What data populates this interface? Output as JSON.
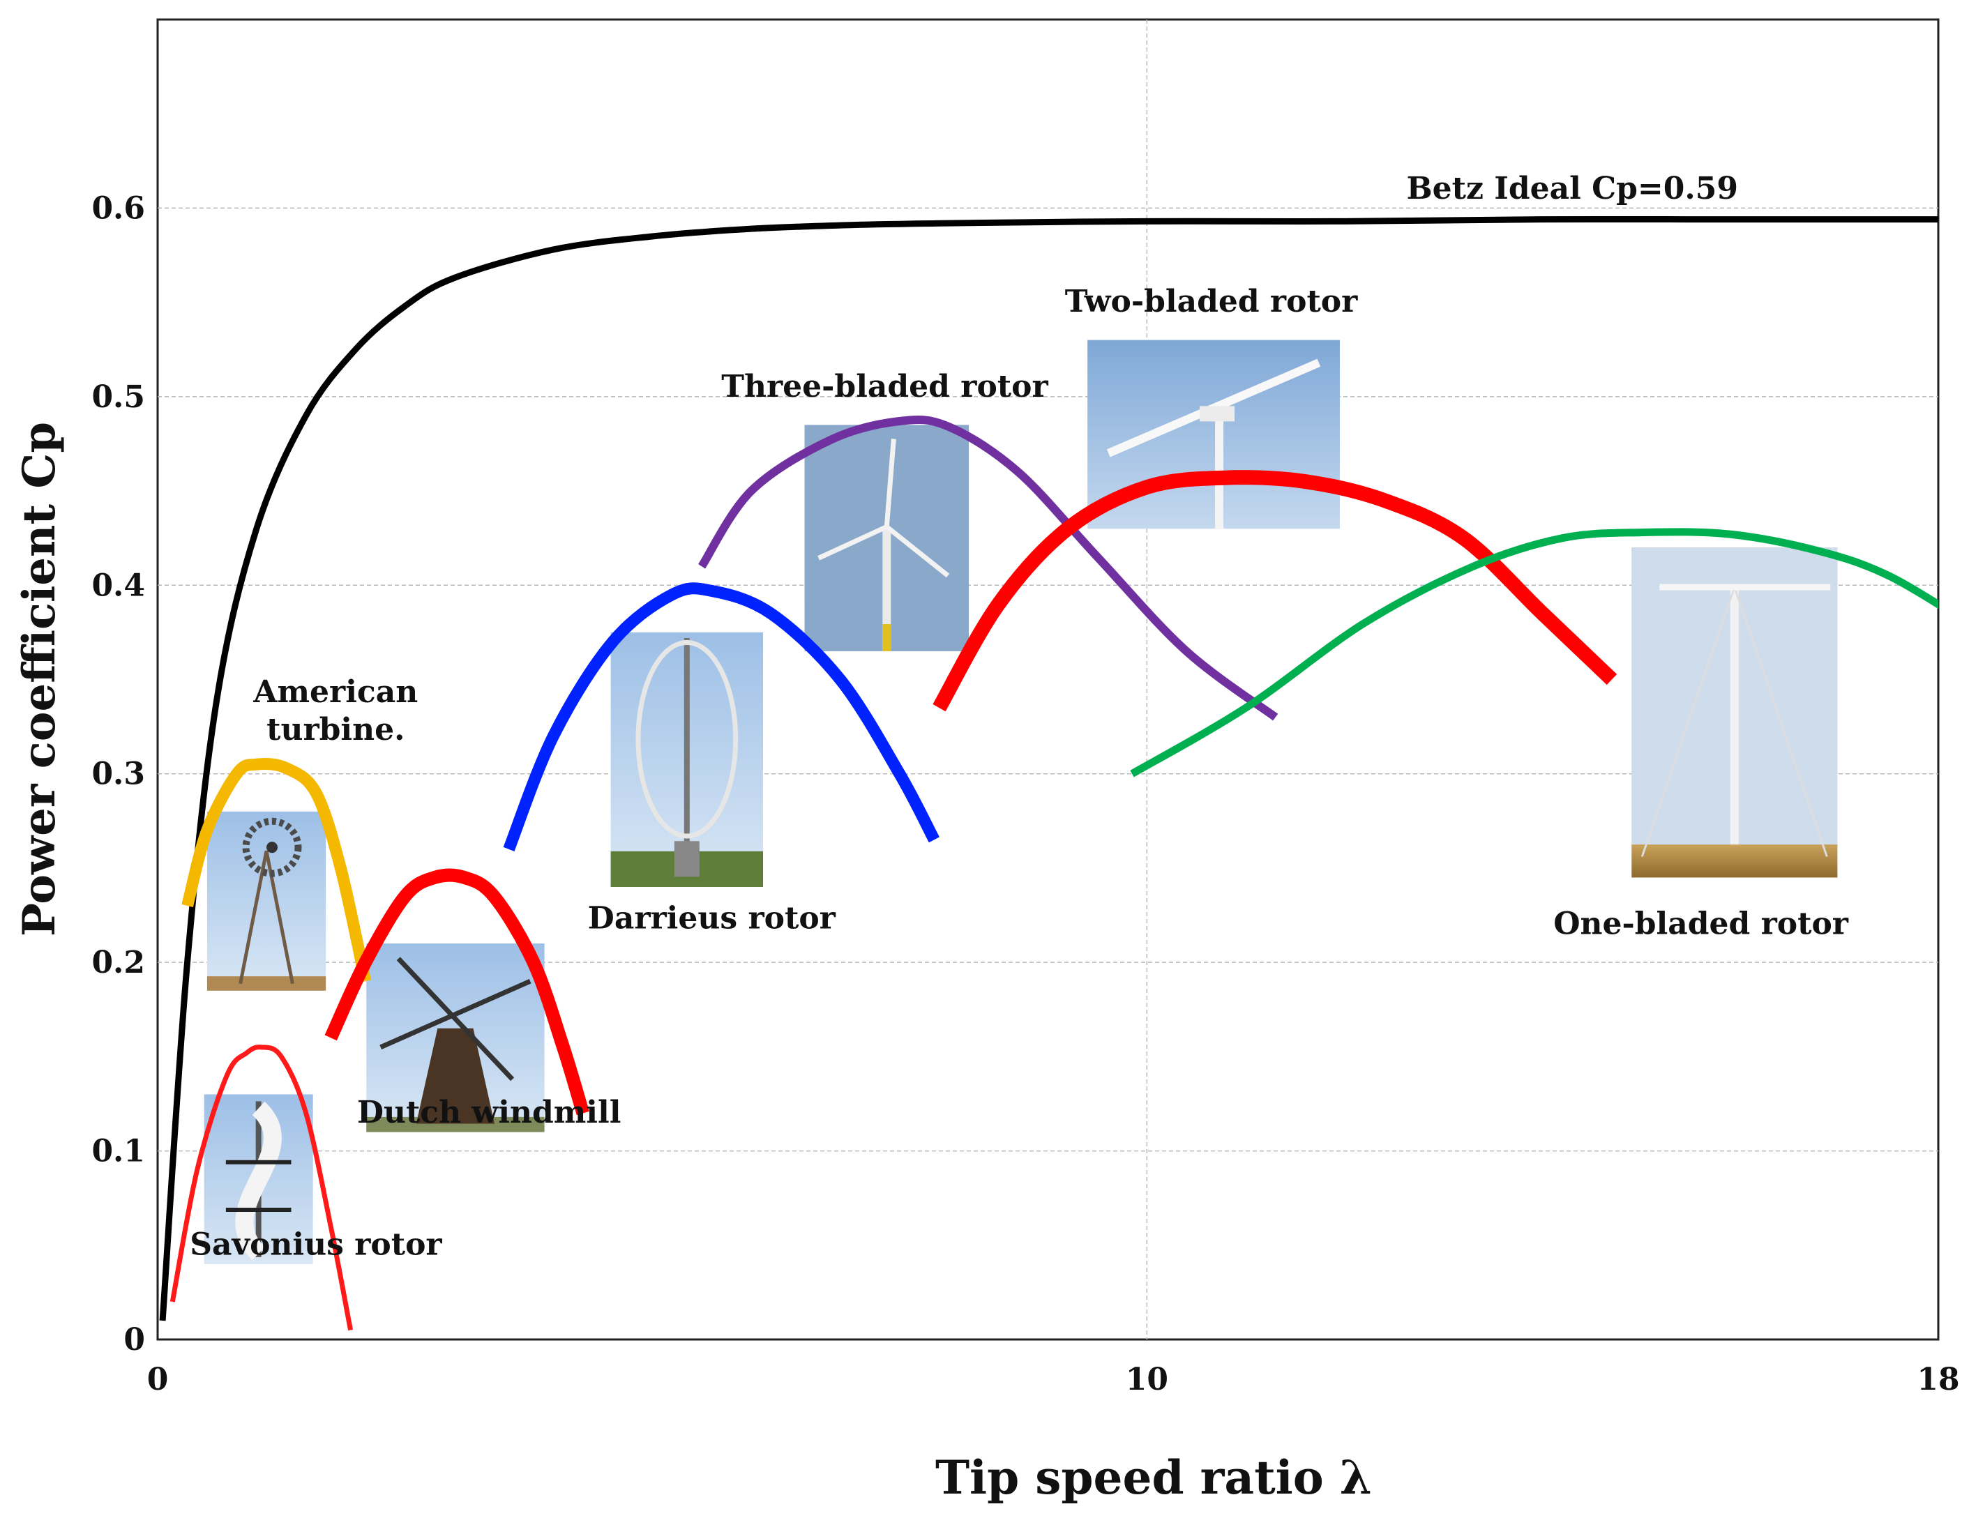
{
  "chart_data": {
    "type": "line",
    "xlabel": "Tip speed ratio λ",
    "ylabel": "Power coefficient Cp",
    "xlim": [
      0,
      18
    ],
    "ylim": [
      0,
      0.7
    ],
    "x_ticks": [
      0,
      10,
      18
    ],
    "y_ticks": [
      0,
      0.1,
      0.2,
      0.3,
      0.4,
      0.5,
      0.6
    ],
    "y_tick_labels": [
      "0",
      "0.1",
      "0.2",
      "0.3",
      "0.4",
      "0.5",
      "0.6"
    ],
    "x_tick_labels": [
      "0",
      "10",
      "18"
    ],
    "grid": true,
    "series": [
      {
        "name": "Betz Ideal Cp=0.59",
        "color": "#000000",
        "x": [
          0.05,
          0.3,
          0.6,
          1.0,
          1.5,
          2.0,
          2.5,
          3.0,
          4.0,
          5.0,
          6.0,
          7.0,
          8.0,
          10.0,
          12.0,
          14.0,
          16.0,
          18.0
        ],
        "y": [
          0.01,
          0.2,
          0.34,
          0.43,
          0.49,
          0.525,
          0.548,
          0.563,
          0.578,
          0.585,
          0.589,
          0.591,
          0.592,
          0.593,
          0.593,
          0.594,
          0.594,
          0.594
        ]
      },
      {
        "name": "Savonius rotor",
        "color": "#ff1a1a",
        "x": [
          0.15,
          0.4,
          0.7,
          0.9,
          1.05,
          1.25,
          1.5,
          1.75,
          1.95
        ],
        "y": [
          0.02,
          0.09,
          0.14,
          0.152,
          0.155,
          0.15,
          0.12,
          0.06,
          0.005
        ]
      },
      {
        "name": "American turbine.",
        "color": "#f5b800",
        "x": [
          0.3,
          0.5,
          0.8,
          1.0,
          1.3,
          1.6,
          1.85,
          2.1
        ],
        "y": [
          0.23,
          0.27,
          0.3,
          0.305,
          0.303,
          0.29,
          0.25,
          0.19
        ]
      },
      {
        "name": "Dutch windmill",
        "color": "#ff0000",
        "x": [
          1.75,
          2.1,
          2.5,
          2.8,
          3.1,
          3.4,
          3.8,
          4.1,
          4.3
        ],
        "y": [
          0.16,
          0.2,
          0.235,
          0.245,
          0.245,
          0.235,
          0.2,
          0.155,
          0.12
        ]
      },
      {
        "name": "Darrieus rotor",
        "color": "#0022ff",
        "x": [
          3.55,
          4.0,
          4.6,
          5.2,
          5.6,
          6.2,
          6.9,
          7.5,
          7.85
        ],
        "y": [
          0.26,
          0.32,
          0.37,
          0.395,
          0.397,
          0.385,
          0.35,
          0.3,
          0.265
        ]
      },
      {
        "name": "Three-bladed rotor",
        "color": "#7030a0",
        "x": [
          5.5,
          6.0,
          6.8,
          7.5,
          8.0,
          8.7,
          9.5,
          10.4,
          11.3
        ],
        "y": [
          0.41,
          0.45,
          0.477,
          0.487,
          0.484,
          0.46,
          0.415,
          0.365,
          0.33
        ]
      },
      {
        "name": "Two-bladed rotor",
        "color": "#ff0000",
        "x": [
          7.9,
          8.5,
          9.2,
          10.0,
          10.8,
          11.6,
          12.4,
          13.2,
          14.0,
          14.7
        ],
        "y": [
          0.335,
          0.39,
          0.43,
          0.452,
          0.457,
          0.455,
          0.445,
          0.425,
          0.385,
          0.35
        ]
      },
      {
        "name": "One-bladed rotor",
        "color": "#00b050",
        "x": [
          9.85,
          11.0,
          12.2,
          13.3,
          14.2,
          15.0,
          15.9,
          16.8,
          17.5,
          18.3
        ],
        "y": [
          0.3,
          0.335,
          0.38,
          0.41,
          0.425,
          0.428,
          0.427,
          0.418,
          0.405,
          0.38
        ]
      }
    ],
    "annotations": [
      {
        "text": "Betz Ideal Cp=0.59",
        "x": 14.3,
        "y": 0.605,
        "anchor": "middle"
      },
      {
        "text": "Two-bladed rotor",
        "x": 10.65,
        "y": 0.545,
        "anchor": "middle"
      },
      {
        "text": "Three-bladed rotor",
        "x": 7.35,
        "y": 0.5,
        "anchor": "middle"
      },
      {
        "text": "American",
        "x": 1.8,
        "y": 0.338,
        "anchor": "middle"
      },
      {
        "text": "turbine.",
        "x": 1.8,
        "y": 0.318,
        "anchor": "middle"
      },
      {
        "text": "Darrieus rotor",
        "x": 5.6,
        "y": 0.218,
        "anchor": "middle"
      },
      {
        "text": "One-bladed rotor",
        "x": 15.6,
        "y": 0.215,
        "anchor": "middle"
      },
      {
        "text": "Dutch windmill",
        "x": 3.35,
        "y": 0.115,
        "anchor": "middle"
      },
      {
        "text": "Savonius rotor",
        "x": 1.6,
        "y": 0.045,
        "anchor": "middle"
      }
    ],
    "photos": [
      {
        "name": "savonius-photo",
        "caption_ref": "Savonius rotor",
        "x0": 0.47,
        "x1": 1.57,
        "y0": 0.04,
        "y1": 0.13
      },
      {
        "name": "american-turbine-photo",
        "caption_ref": "American turbine.",
        "x0": 0.5,
        "x1": 1.7,
        "y0": 0.185,
        "y1": 0.28
      },
      {
        "name": "dutch-windmill-photo",
        "caption_ref": "Dutch windmill",
        "x0": 2.11,
        "x1": 3.91,
        "y0": 0.11,
        "y1": 0.21
      },
      {
        "name": "darrieus-photo",
        "caption_ref": "Darrieus rotor",
        "x0": 4.58,
        "x1": 6.12,
        "y0": 0.24,
        "y1": 0.375
      },
      {
        "name": "three-bladed-photo",
        "caption_ref": "Three-bladed rotor",
        "x0": 6.54,
        "x1": 8.2,
        "y0": 0.365,
        "y1": 0.485
      },
      {
        "name": "two-bladed-photo",
        "caption_ref": "Two-bladed rotor",
        "x0": 9.4,
        "x1": 11.95,
        "y0": 0.43,
        "y1": 0.53
      },
      {
        "name": "one-bladed-photo",
        "caption_ref": "One-bladed rotor",
        "x0": 14.9,
        "x1": 16.98,
        "y0": 0.245,
        "y1": 0.42
      }
    ]
  }
}
